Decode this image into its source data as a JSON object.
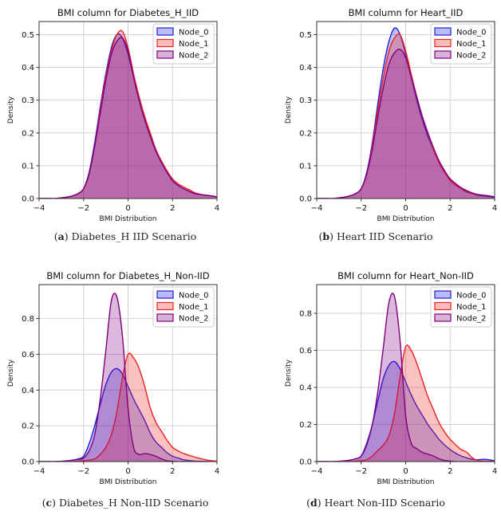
{
  "colors": {
    "Node_0": "#1f1fe0",
    "Node_1": "#ee2222",
    "Node_2": "#800080"
  },
  "chart_data": [
    {
      "type": "area",
      "title": "BMI column for Diabetes_H_IID",
      "caption_label": "a",
      "caption_text": "Diabetes_H IID Scenario",
      "xlabel": "BMI Distribution",
      "ylabel": "Density",
      "xlim": [
        -4,
        4
      ],
      "ylim": [
        0,
        0.54
      ],
      "xticks": [
        -4,
        -2,
        0,
        2,
        4
      ],
      "yticks": [
        0,
        0.1,
        0.2,
        0.3,
        0.4,
        0.5
      ],
      "ytick_decimals": 1,
      "grid": true,
      "legend": "top-right",
      "x": [
        -4,
        -3.75,
        -3.5,
        -3.25,
        -3,
        -2.75,
        -2.5,
        -2.25,
        -2,
        -1.75,
        -1.5,
        -1.25,
        -1,
        -0.75,
        -0.5,
        -0.25,
        0,
        0.25,
        0.5,
        0.75,
        1,
        1.25,
        1.5,
        1.75,
        2,
        2.25,
        2.5,
        2.75,
        3,
        3.25,
        3.5,
        3.75,
        4
      ],
      "series": [
        {
          "name": "Node_0",
          "values": [
            0,
            0,
            0,
            0,
            0.002,
            0.004,
            0.008,
            0.015,
            0.03,
            0.08,
            0.17,
            0.28,
            0.38,
            0.46,
            0.5,
            0.49,
            0.44,
            0.37,
            0.3,
            0.24,
            0.19,
            0.145,
            0.11,
            0.08,
            0.055,
            0.04,
            0.03,
            0.022,
            0.015,
            0.012,
            0.01,
            0.008,
            0.005
          ]
        },
        {
          "name": "Node_1",
          "values": [
            0,
            0,
            0,
            0,
            0.002,
            0.004,
            0.008,
            0.015,
            0.03,
            0.075,
            0.16,
            0.27,
            0.37,
            0.45,
            0.5,
            0.51,
            0.46,
            0.38,
            0.31,
            0.25,
            0.2,
            0.15,
            0.115,
            0.085,
            0.06,
            0.045,
            0.035,
            0.027,
            0.018,
            0.013,
            0.01,
            0.008,
            0.005
          ]
        },
        {
          "name": "Node_2",
          "values": [
            0,
            0,
            0,
            0,
            0.002,
            0.004,
            0.008,
            0.015,
            0.03,
            0.075,
            0.16,
            0.26,
            0.36,
            0.44,
            0.48,
            0.49,
            0.45,
            0.37,
            0.3,
            0.24,
            0.19,
            0.145,
            0.11,
            0.08,
            0.055,
            0.04,
            0.03,
            0.022,
            0.015,
            0.012,
            0.01,
            0.008,
            0.005
          ]
        }
      ]
    },
    {
      "type": "area",
      "title": "BMI column for Heart_IID",
      "caption_label": "b",
      "caption_text": "Heart IID Scenario",
      "xlabel": "BMI Distribution",
      "ylabel": "Density",
      "xlim": [
        -4,
        4
      ],
      "ylim": [
        0,
        0.54
      ],
      "xticks": [
        -4,
        -2,
        0,
        2,
        4
      ],
      "yticks": [
        0,
        0.1,
        0.2,
        0.3,
        0.4,
        0.5
      ],
      "ytick_decimals": 1,
      "grid": true,
      "legend": "top-right",
      "x": [
        -4,
        -3.75,
        -3.5,
        -3.25,
        -3,
        -2.75,
        -2.5,
        -2.25,
        -2,
        -1.75,
        -1.5,
        -1.25,
        -1,
        -0.75,
        -0.5,
        -0.25,
        0,
        0.25,
        0.5,
        0.75,
        1,
        1.25,
        1.5,
        1.75,
        2,
        2.25,
        2.5,
        2.75,
        3,
        3.25,
        3.5,
        3.75,
        4
      ],
      "series": [
        {
          "name": "Node_0",
          "values": [
            0,
            0,
            0,
            0,
            0.002,
            0.004,
            0.008,
            0.015,
            0.03,
            0.08,
            0.17,
            0.29,
            0.4,
            0.48,
            0.52,
            0.5,
            0.44,
            0.37,
            0.3,
            0.24,
            0.19,
            0.15,
            0.11,
            0.08,
            0.06,
            0.045,
            0.03,
            0.02,
            0.015,
            0.01,
            0.008,
            0.006,
            0.004
          ]
        },
        {
          "name": "Node_1",
          "values": [
            0,
            0,
            0,
            0,
            0.002,
            0.004,
            0.008,
            0.015,
            0.03,
            0.075,
            0.16,
            0.27,
            0.37,
            0.45,
            0.49,
            0.5,
            0.45,
            0.38,
            0.31,
            0.25,
            0.2,
            0.15,
            0.11,
            0.08,
            0.055,
            0.04,
            0.03,
            0.022,
            0.015,
            0.012,
            0.01,
            0.008,
            0.005
          ]
        },
        {
          "name": "Node_2",
          "values": [
            0,
            0,
            0,
            0,
            0.002,
            0.004,
            0.008,
            0.015,
            0.03,
            0.075,
            0.15,
            0.25,
            0.34,
            0.41,
            0.445,
            0.455,
            0.43,
            0.37,
            0.31,
            0.25,
            0.2,
            0.155,
            0.115,
            0.085,
            0.06,
            0.045,
            0.033,
            0.024,
            0.017,
            0.012,
            0.01,
            0.008,
            0.005
          ]
        }
      ]
    },
    {
      "type": "area",
      "title": "BMI column for Diabetes_H_Non-IID",
      "caption_label": "c",
      "caption_text": "Diabetes_H Non-IID Scenario",
      "xlabel": "BMI Distribution",
      "ylabel": "Density",
      "xlim": [
        -4,
        4
      ],
      "ylim": [
        0,
        0.99
      ],
      "xticks": [
        -4,
        -2,
        0,
        2,
        4
      ],
      "yticks": [
        0,
        0.2,
        0.4,
        0.6,
        0.8
      ],
      "ytick_decimals": 1,
      "grid": true,
      "legend": "top-right",
      "x": [
        -4,
        -3.75,
        -3.5,
        -3.25,
        -3,
        -2.75,
        -2.5,
        -2.25,
        -2,
        -1.75,
        -1.5,
        -1.25,
        -1,
        -0.75,
        -0.5,
        -0.25,
        0,
        0.25,
        0.5,
        0.75,
        1,
        1.25,
        1.5,
        1.75,
        2,
        2.25,
        2.5,
        2.75,
        3,
        3.25,
        3.5,
        3.75,
        4
      ],
      "series": [
        {
          "name": "Node_0",
          "values": [
            0,
            0,
            0,
            0,
            0.002,
            0.004,
            0.008,
            0.015,
            0.03,
            0.1,
            0.2,
            0.32,
            0.43,
            0.5,
            0.52,
            0.49,
            0.42,
            0.35,
            0.29,
            0.23,
            0.16,
            0.11,
            0.08,
            0.05,
            0.03,
            0.02,
            0.01,
            0.006,
            0.003,
            0.002,
            0.001,
            0,
            0
          ]
        },
        {
          "name": "Node_1",
          "values": [
            0,
            0,
            0,
            0,
            0,
            0,
            0,
            0.002,
            0.005,
            0.008,
            0.015,
            0.04,
            0.08,
            0.15,
            0.28,
            0.47,
            0.6,
            0.58,
            0.52,
            0.42,
            0.3,
            0.22,
            0.17,
            0.12,
            0.08,
            0.06,
            0.045,
            0.035,
            0.025,
            0.017,
            0.01,
            0.005,
            0.002
          ]
        },
        {
          "name": "Node_2",
          "values": [
            0,
            0,
            0,
            0,
            0.002,
            0.004,
            0.008,
            0.012,
            0.02,
            0.06,
            0.15,
            0.35,
            0.62,
            0.9,
            0.92,
            0.7,
            0.3,
            0.08,
            0.04,
            0.045,
            0.04,
            0.03,
            0.015,
            0.005,
            0.002,
            0,
            0,
            0,
            0,
            0,
            0,
            0,
            0
          ]
        }
      ]
    },
    {
      "type": "area",
      "title": "BMI column for Heart_Non-IID",
      "caption_label": "d",
      "caption_text": "Heart Non-IID Scenario",
      "xlabel": "BMI Distribution",
      "ylabel": "Density",
      "xlim": [
        -4,
        4
      ],
      "ylim": [
        0,
        0.955
      ],
      "xticks": [
        -4,
        -2,
        0,
        2,
        4
      ],
      "yticks": [
        0,
        0.2,
        0.4,
        0.6,
        0.8
      ],
      "ytick_decimals": 1,
      "grid": true,
      "legend": "top-right",
      "x": [
        -4,
        -3.75,
        -3.5,
        -3.25,
        -3,
        -2.75,
        -2.5,
        -2.25,
        -2,
        -1.75,
        -1.5,
        -1.25,
        -1,
        -0.75,
        -0.5,
        -0.25,
        0,
        0.25,
        0.5,
        0.75,
        1,
        1.25,
        1.5,
        1.75,
        2,
        2.25,
        2.5,
        2.75,
        3,
        3.25,
        3.5,
        3.75,
        4
      ],
      "series": [
        {
          "name": "Node_0",
          "values": [
            0,
            0,
            0,
            0,
            0.002,
            0.004,
            0.008,
            0.015,
            0.03,
            0.1,
            0.2,
            0.33,
            0.45,
            0.52,
            0.54,
            0.5,
            0.43,
            0.36,
            0.3,
            0.25,
            0.2,
            0.16,
            0.12,
            0.09,
            0.065,
            0.045,
            0.03,
            0.02,
            0.012,
            0.01,
            0.012,
            0.01,
            0.004
          ]
        },
        {
          "name": "Node_1",
          "values": [
            0,
            0,
            0,
            0,
            0,
            0,
            0,
            0.002,
            0.005,
            0.01,
            0.03,
            0.06,
            0.09,
            0.14,
            0.26,
            0.46,
            0.62,
            0.6,
            0.53,
            0.44,
            0.35,
            0.28,
            0.21,
            0.16,
            0.12,
            0.09,
            0.065,
            0.05,
            0.02,
            0.005,
            0.003,
            0.002,
            0.001
          ]
        },
        {
          "name": "Node_2",
          "values": [
            0,
            0,
            0,
            0,
            0.002,
            0.004,
            0.008,
            0.015,
            0.03,
            0.09,
            0.2,
            0.38,
            0.62,
            0.86,
            0.89,
            0.65,
            0.25,
            0.1,
            0.07,
            0.05,
            0.04,
            0.03,
            0.015,
            0.006,
            0.003,
            0,
            0,
            0,
            0,
            0,
            0,
            0,
            0
          ]
        }
      ]
    }
  ]
}
